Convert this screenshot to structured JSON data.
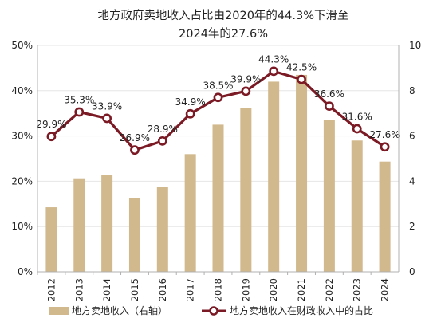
{
  "title_line1": "地方政府卖地收入占比由2020年的44.3%下滑至",
  "title_line2": "2024年的27.6%",
  "legend": {
    "bar_label": "地方卖地收入（右轴）",
    "line_label": "地方卖地收入在财政收入中的占比"
  },
  "colors": {
    "bar": "#d1b98d",
    "line": "#7b1a24",
    "grid": "#e6e6e6",
    "axis": "#b0b0b0",
    "text": "#222222"
  },
  "chart_data": {
    "type": "bar",
    "title": "地方政府卖地收入占比由2020年的44.3%下滑至2024年的27.6%",
    "categories": [
      "2012",
      "2013",
      "2014",
      "2015",
      "2016",
      "2017",
      "2018",
      "2019",
      "2020",
      "2021",
      "2022",
      "2023",
      "2024"
    ],
    "series": [
      {
        "name": "地方卖地收入（右轴）",
        "type": "bar",
        "axis": "right",
        "values": [
          2.85,
          4.13,
          4.26,
          3.25,
          3.75,
          5.2,
          6.5,
          7.25,
          8.4,
          8.7,
          6.7,
          5.8,
          4.87
        ]
      },
      {
        "name": "地方卖地收入在财政收入中的占比",
        "type": "line",
        "axis": "left",
        "values": [
          29.9,
          35.3,
          33.9,
          26.9,
          28.9,
          34.9,
          38.5,
          39.9,
          44.3,
          42.5,
          36.6,
          31.6,
          27.6
        ],
        "labels": [
          "29.9%",
          "35.3%",
          "33.9%",
          "26.9%",
          "28.9%",
          "34.9%",
          "38.5%",
          "39.9%",
          "44.3%",
          "42.5%",
          "36.6%",
          "31.6%",
          "27.6%"
        ]
      }
    ],
    "y_left": {
      "ylim": [
        0,
        50
      ],
      "ticks": [
        "0%",
        "10%",
        "20%",
        "30%",
        "40%",
        "50%"
      ]
    },
    "y_right": {
      "ylim": [
        0,
        10
      ],
      "ticks": [
        "0",
        "2",
        "4",
        "6",
        "8",
        "10"
      ]
    },
    "grid": true,
    "legend_position": "bottom"
  }
}
